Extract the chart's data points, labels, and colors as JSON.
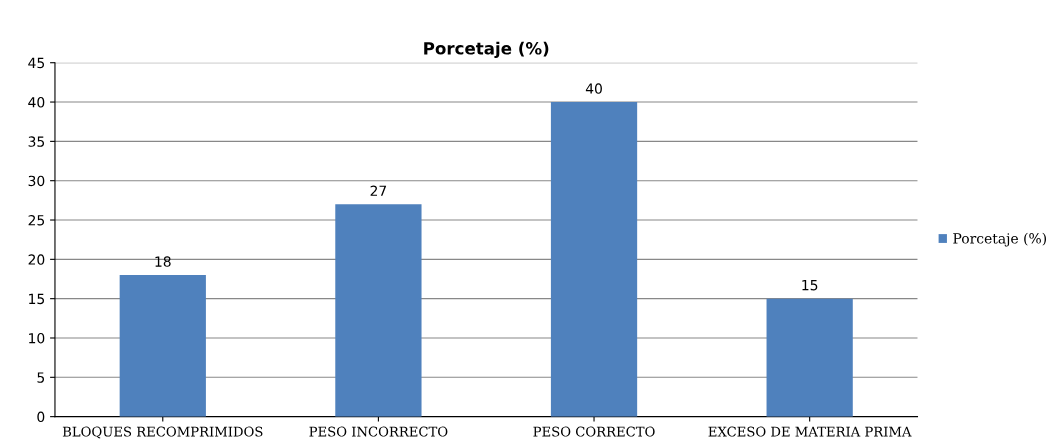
{
  "chart_data": {
    "type": "bar",
    "title": "Porcetaje (%)",
    "categories": [
      "BLOQUES RECOMPRIMIDOS",
      "PESO INCORRECTO",
      "PESO CORRECTO",
      "EXCESO DE MATERIA PRIMA"
    ],
    "series": [
      {
        "name": "Porcetaje (%)",
        "color": "#4f81bd",
        "values": [
          18,
          27,
          40,
          15
        ]
      }
    ],
    "ylim": [
      0,
      45
    ],
    "yticks": [
      0,
      5,
      10,
      15,
      20,
      25,
      30,
      35,
      40,
      45
    ],
    "grid": "y",
    "legend": "right",
    "data_labels": true
  }
}
